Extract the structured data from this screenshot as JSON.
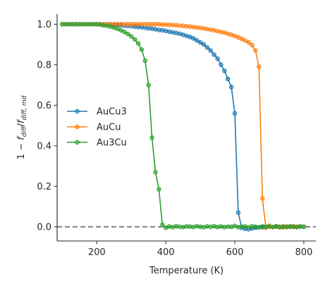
{
  "chart_data": {
    "type": "line",
    "title": "",
    "xlabel": "Temperature (K)",
    "ylabel": "1 − f_diff / f_diff,md",
    "ylabel_parts": {
      "prefix": "1 − ",
      "f": "f",
      "sub1": "diff",
      "slash": "/",
      "sub2": "diff, md"
    },
    "xlim": [
      85,
      835
    ],
    "ylim": [
      -0.07,
      1.05
    ],
    "xticks": [
      200,
      400,
      600,
      800
    ],
    "xtick_labels": [
      "200",
      "400",
      "600",
      "800"
    ],
    "yticks": [
      0.0,
      0.2,
      0.4,
      0.6,
      0.8,
      1.0
    ],
    "ytick_labels": [
      "0.0",
      "0.2",
      "0.4",
      "0.6",
      "0.8",
      "1.0"
    ],
    "grid": false,
    "legend_position": "center-left",
    "reference_line": {
      "y": 0.0,
      "style": "dashed",
      "color": "#808080"
    },
    "series": [
      {
        "name": "AuCu3",
        "color": "#1f77b4",
        "x": [
          100,
          110,
          120,
          130,
          140,
          150,
          160,
          170,
          180,
          190,
          200,
          210,
          220,
          230,
          240,
          250,
          260,
          270,
          280,
          290,
          300,
          310,
          320,
          330,
          340,
          350,
          360,
          370,
          380,
          390,
          400,
          410,
          420,
          430,
          440,
          450,
          460,
          470,
          480,
          490,
          500,
          510,
          520,
          530,
          540,
          550,
          560,
          570,
          580,
          590,
          600,
          610,
          620,
          630,
          640,
          650,
          660,
          670,
          680,
          690,
          700,
          710,
          720,
          730,
          740,
          750,
          760,
          770,
          780,
          790,
          800
        ],
        "y": [
          1.0,
          1.0,
          1.0,
          1.0,
          1.0,
          1.0,
          1.0,
          1.0,
          1.0,
          1.0,
          1.0,
          1.0,
          1.0,
          1.0,
          0.998,
          0.997,
          0.996,
          0.995,
          0.993,
          0.992,
          0.99,
          0.988,
          0.986,
          0.985,
          0.983,
          0.98,
          0.978,
          0.975,
          0.972,
          0.97,
          0.967,
          0.963,
          0.96,
          0.957,
          0.953,
          0.948,
          0.943,
          0.937,
          0.93,
          0.92,
          0.91,
          0.9,
          0.885,
          0.87,
          0.85,
          0.83,
          0.8,
          0.77,
          0.73,
          0.69,
          0.56,
          0.07,
          -0.005,
          -0.01,
          -0.012,
          -0.008,
          -0.005,
          -0.003,
          -0.002,
          0.0,
          0.003,
          -0.002,
          0.001,
          -0.003,
          0.002,
          -0.001,
          0.0,
          0.002,
          -0.002,
          0.001,
          0.0
        ]
      },
      {
        "name": "AuCu",
        "color": "#ff7f0e",
        "x": [
          100,
          110,
          120,
          130,
          140,
          150,
          160,
          170,
          180,
          190,
          200,
          210,
          220,
          230,
          240,
          250,
          260,
          270,
          280,
          290,
          300,
          310,
          320,
          330,
          340,
          350,
          360,
          370,
          380,
          390,
          400,
          410,
          420,
          430,
          440,
          450,
          460,
          470,
          480,
          490,
          500,
          510,
          520,
          530,
          540,
          550,
          560,
          570,
          580,
          590,
          600,
          610,
          620,
          630,
          640,
          650,
          660,
          670,
          680,
          690,
          700,
          710,
          720,
          730,
          740,
          750,
          760,
          770,
          780,
          790,
          800
        ],
        "y": [
          1.0,
          1.0,
          1.0,
          1.0,
          1.0,
          1.0,
          1.0,
          1.0,
          1.0,
          1.0,
          1.0,
          1.0,
          1.0,
          1.0,
          1.0,
          1.0,
          1.0,
          1.0,
          1.0,
          1.0,
          1.0,
          1.0,
          1.0,
          1.0,
          1.0,
          1.0,
          1.0,
          1.0,
          1.0,
          0.998,
          0.998,
          0.997,
          0.996,
          0.995,
          0.993,
          0.992,
          0.99,
          0.988,
          0.986,
          0.984,
          0.982,
          0.979,
          0.976,
          0.973,
          0.97,
          0.966,
          0.962,
          0.958,
          0.953,
          0.948,
          0.942,
          0.935,
          0.928,
          0.919,
          0.91,
          0.897,
          0.87,
          0.79,
          0.14,
          -0.005,
          0.005,
          -0.002,
          0.003,
          -0.003,
          0.002,
          -0.002,
          0.001,
          0.003,
          -0.001,
          0.002,
          0.0
        ]
      },
      {
        "name": "Au3Cu",
        "color": "#2ca02c",
        "x": [
          100,
          110,
          120,
          130,
          140,
          150,
          160,
          170,
          180,
          190,
          200,
          210,
          220,
          230,
          240,
          250,
          260,
          270,
          280,
          290,
          300,
          310,
          320,
          330,
          340,
          350,
          360,
          370,
          380,
          390,
          400,
          410,
          420,
          430,
          440,
          450,
          460,
          470,
          480,
          490,
          500,
          510,
          520,
          530,
          540,
          550,
          560,
          570,
          580,
          590,
          600,
          610,
          620,
          630,
          640,
          650,
          660,
          670,
          680,
          690,
          700,
          710,
          720,
          730,
          740,
          750,
          760,
          770,
          780,
          790,
          800
        ],
        "y": [
          1.0,
          1.0,
          1.0,
          1.0,
          1.0,
          1.0,
          1.0,
          1.0,
          1.0,
          1.0,
          1.0,
          0.998,
          0.995,
          0.992,
          0.988,
          0.983,
          0.977,
          0.97,
          0.962,
          0.952,
          0.94,
          0.925,
          0.905,
          0.875,
          0.82,
          0.7,
          0.44,
          0.27,
          0.185,
          0.01,
          -0.005,
          0.002,
          -0.002,
          0.003,
          0.0,
          -0.002,
          0.002,
          0.001,
          -0.001,
          0.003,
          0.0,
          -0.002,
          0.002,
          0.0,
          0.003,
          -0.001,
          0.002,
          -0.002,
          0.001,
          0.0,
          0.004,
          -0.002,
          0.001,
          0.002,
          -0.003,
          0.003,
          0.0,
          -0.002,
          0.002,
          0.0,
          0.001,
          -0.001,
          0.003,
          0.0,
          -0.002,
          0.001,
          0.002,
          -0.001,
          0.0,
          0.002,
          0.0
        ]
      }
    ]
  }
}
